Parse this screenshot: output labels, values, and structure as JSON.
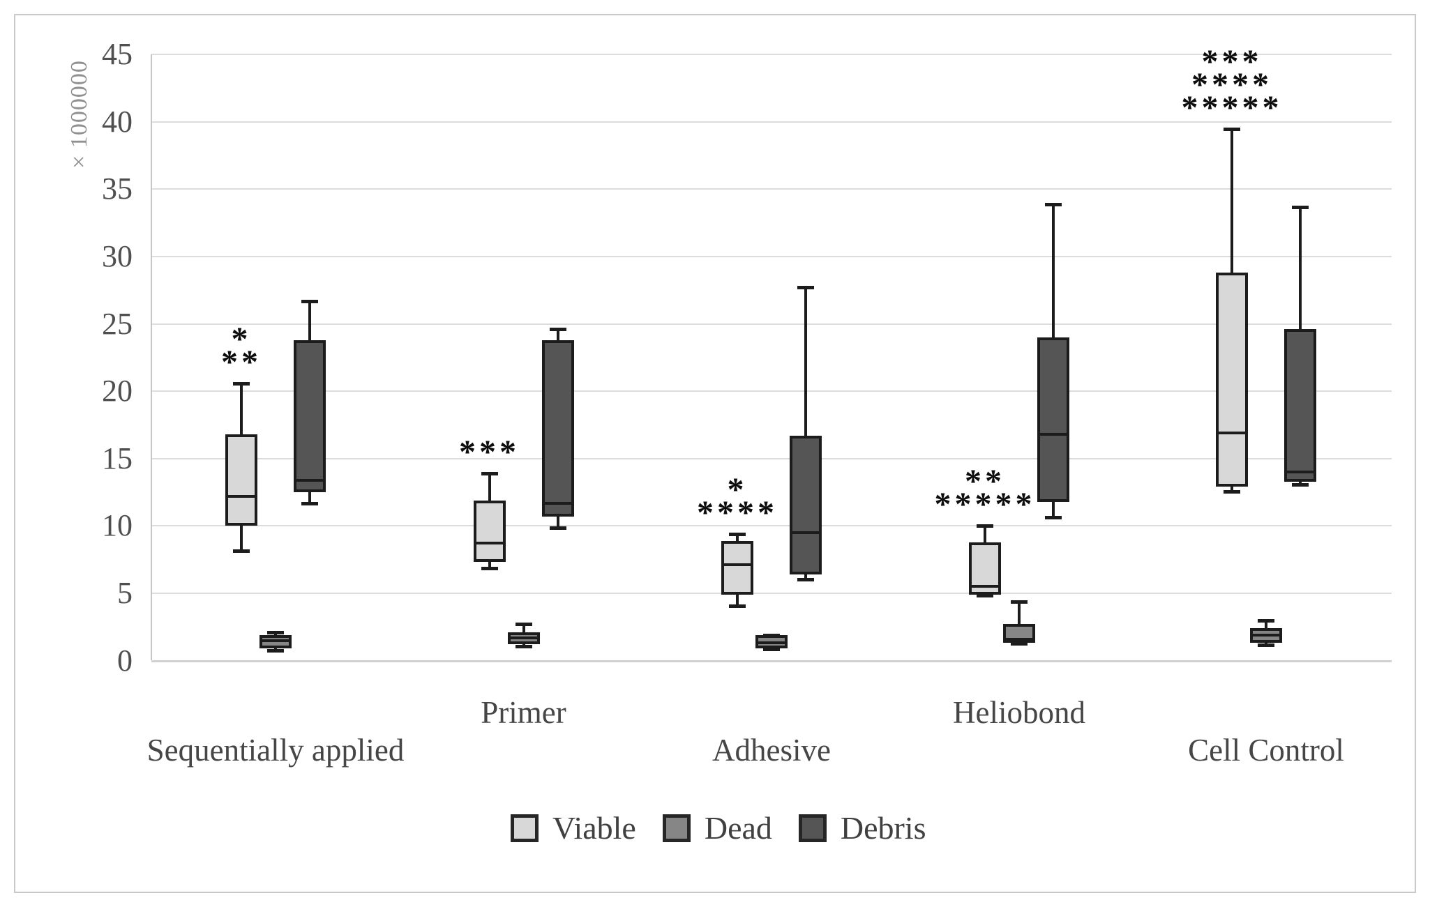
{
  "chart_data": {
    "type": "boxplot",
    "title": "",
    "ylabel": "× 1000000",
    "ylim": [
      0,
      45
    ],
    "yticks": [
      0,
      5,
      10,
      15,
      20,
      25,
      30,
      35,
      40,
      45
    ],
    "grid": "horizontal",
    "legend_position": "bottom",
    "series": [
      "Viable",
      "Dead",
      "Debris"
    ],
    "colors": {
      "Viable": "#d8d8d8",
      "Dead": "#868686",
      "Debris": "#555555"
    },
    "categories": [
      "Sequentially applied",
      "Primer",
      "Adhesive",
      "Heliobond",
      "Cell Control"
    ],
    "category_label_rows": [
      "lower",
      "upper",
      "lower",
      "upper",
      "lower"
    ],
    "groups": [
      {
        "category": "Sequentially applied",
        "significance": [
          "*",
          "**"
        ],
        "boxes": {
          "Viable": {
            "min": 8.1,
            "q1": 10.0,
            "median": 12.2,
            "q3": 16.8,
            "max": 20.6
          },
          "Dead": {
            "min": 0.7,
            "q1": 0.9,
            "median": 1.5,
            "q3": 1.9,
            "max": 2.1
          },
          "Debris": {
            "min": 11.6,
            "q1": 12.5,
            "median": 13.4,
            "q3": 23.8,
            "max": 26.7
          }
        }
      },
      {
        "category": "Primer",
        "significance": [
          "***"
        ],
        "boxes": {
          "Viable": {
            "min": 6.8,
            "q1": 7.3,
            "median": 8.7,
            "q3": 11.9,
            "max": 13.9
          },
          "Dead": {
            "min": 1.0,
            "q1": 1.2,
            "median": 1.7,
            "q3": 2.1,
            "max": 2.7
          },
          "Debris": {
            "min": 9.8,
            "q1": 10.7,
            "median": 11.7,
            "q3": 23.8,
            "max": 24.6
          }
        }
      },
      {
        "category": "Adhesive",
        "significance": [
          "*",
          "****"
        ],
        "boxes": {
          "Viable": {
            "min": 4.0,
            "q1": 4.9,
            "median": 7.1,
            "q3": 8.9,
            "max": 9.4
          },
          "Dead": {
            "min": 0.8,
            "q1": 0.9,
            "median": 1.3,
            "q3": 1.9,
            "max": 1.9
          },
          "Debris": {
            "min": 6.0,
            "q1": 6.4,
            "median": 9.5,
            "q3": 16.7,
            "max": 27.7
          }
        }
      },
      {
        "category": "Heliobond",
        "significance": [
          "**",
          "*****"
        ],
        "boxes": {
          "Viable": {
            "min": 4.8,
            "q1": 4.9,
            "median": 5.5,
            "q3": 8.8,
            "max": 10.0
          },
          "Dead": {
            "min": 1.2,
            "q1": 1.3,
            "median": 1.6,
            "q3": 2.7,
            "max": 4.4
          },
          "Debris": {
            "min": 10.6,
            "q1": 11.8,
            "median": 16.8,
            "q3": 24.0,
            "max": 33.9
          }
        }
      },
      {
        "category": "Cell Control",
        "significance": [
          "***",
          "****",
          "*****"
        ],
        "boxes": {
          "Viable": {
            "min": 12.5,
            "q1": 12.9,
            "median": 16.9,
            "q3": 28.8,
            "max": 39.5
          },
          "Dead": {
            "min": 1.1,
            "q1": 1.3,
            "median": 1.9,
            "q3": 2.4,
            "max": 3.0
          },
          "Debris": {
            "min": 13.0,
            "q1": 13.3,
            "median": 14.0,
            "q3": 24.6,
            "max": 33.7
          }
        }
      }
    ],
    "legend": [
      {
        "label": "Viable",
        "color": "#d8d8d8"
      },
      {
        "label": "Dead",
        "color": "#868686"
      },
      {
        "label": "Debris",
        "color": "#555555"
      }
    ]
  }
}
